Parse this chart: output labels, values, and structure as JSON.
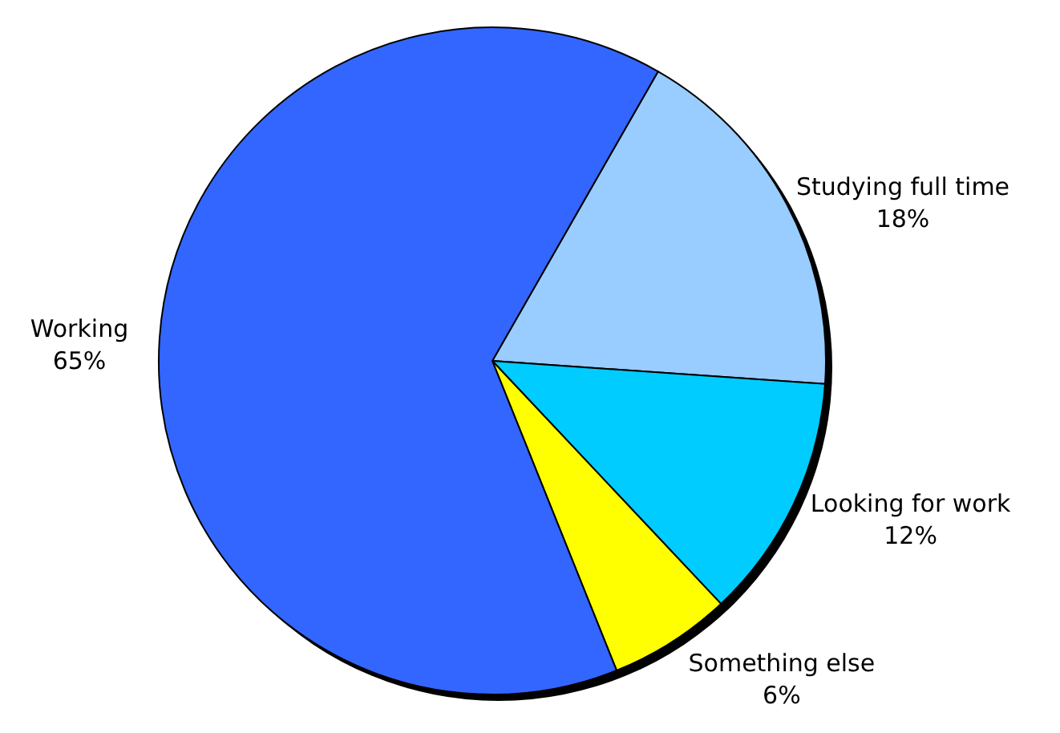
{
  "chart_data": {
    "type": "pie",
    "categories": [
      "Studying full time",
      "Looking for work",
      "Something else",
      "Working"
    ],
    "values": [
      18,
      12,
      6,
      65
    ],
    "value_labels": [
      "18%",
      "12%",
      "6%",
      "65%"
    ],
    "colors": [
      "#99ccff",
      "#00ccff",
      "#ffff00",
      "#3366ff"
    ]
  }
}
